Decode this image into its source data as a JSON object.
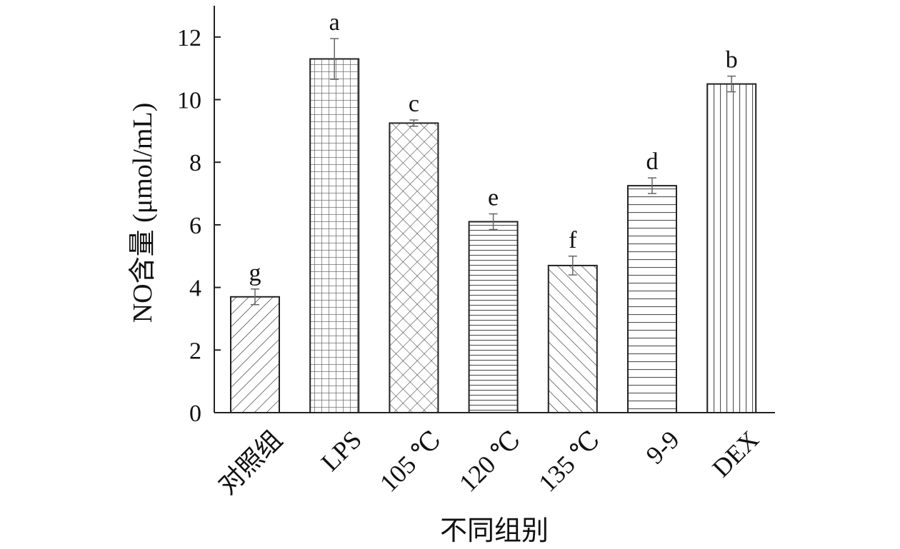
{
  "chart_data": {
    "type": "bar",
    "title": "",
    "xlabel": "不同组别",
    "ylabel": "NO含量 (μmol/mL)",
    "ylim": [
      0,
      13
    ],
    "yticks": [
      0,
      2,
      4,
      6,
      8,
      10,
      12
    ],
    "grid": false,
    "categories": [
      "对照组",
      "LPS",
      "105 ℃",
      "120 ℃",
      "135 ℃",
      "9-9",
      "DEX"
    ],
    "values": [
      3.7,
      11.3,
      9.25,
      6.1,
      4.7,
      7.25,
      10.5
    ],
    "errors": [
      0.25,
      0.65,
      0.1,
      0.25,
      0.3,
      0.25,
      0.25
    ],
    "significance": [
      "g",
      "a",
      "c",
      "e",
      "f",
      "d",
      "b"
    ],
    "patterns": [
      "diag-right",
      "grid",
      "crosshatch",
      "horizontal",
      "diag-left",
      "horizontal-wide",
      "vertical"
    ]
  }
}
